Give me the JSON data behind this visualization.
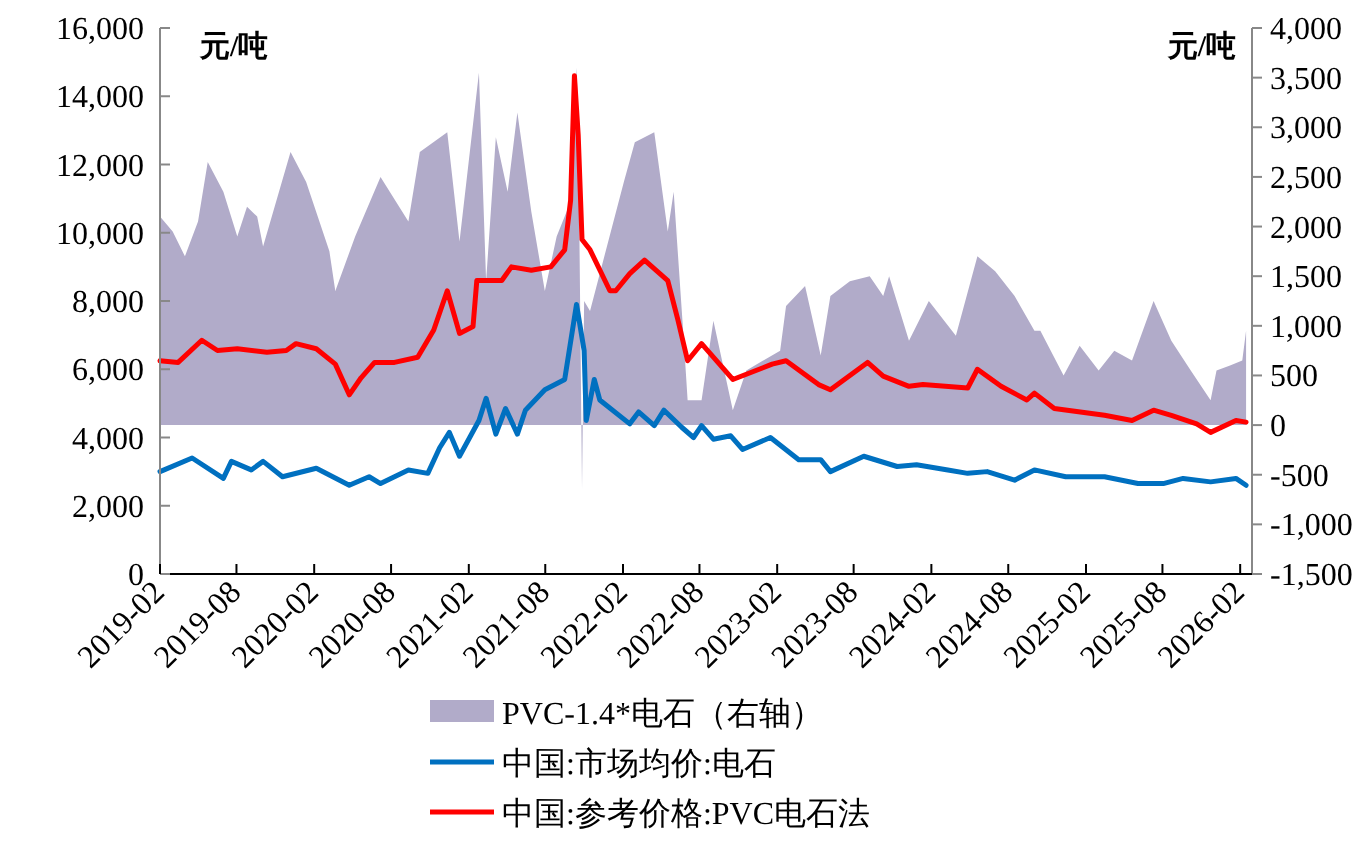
{
  "chart_data": {
    "type": "line",
    "ylabel": "元/吨",
    "y2label": "元/吨",
    "legend": "bottom",
    "grid": false,
    "xlim": [
      "2019-02-01",
      "2026-03-01"
    ],
    "xticks": [
      "2019-02",
      "2019-08",
      "2020-02",
      "2020-08",
      "2021-02",
      "2021-08",
      "2022-02",
      "2022-08",
      "2023-02",
      "2023-08",
      "2024-02",
      "2024-08",
      "2025-02",
      "2025-08",
      "2026-02"
    ],
    "ylim": [
      0,
      16000
    ],
    "yticks": [
      0,
      {
        "value": 2000,
        "label": "2,000"
      },
      {
        "value": 4000,
        "label": "4,000"
      },
      {
        "value": 6000,
        "label": "6,000"
      },
      {
        "value": 8000,
        "label": "8,000"
      },
      {
        "value": 10000,
        "label": "10,000"
      },
      {
        "value": 12000,
        "label": "12,000"
      },
      {
        "value": 14000,
        "label": "14,000"
      },
      {
        "value": 16000,
        "label": "16,000"
      }
    ],
    "y2lim": [
      -1500,
      4000
    ],
    "y2ticks": [
      {
        "value": -1500,
        "label": "-1,500"
      },
      {
        "value": -1000,
        "label": "-1,000"
      },
      -500,
      0,
      500,
      {
        "value": 1000,
        "label": "1,000"
      },
      {
        "value": 1500,
        "label": "1,500"
      },
      {
        "value": 2000,
        "label": "2,000"
      },
      {
        "value": 2500,
        "label": "2,500"
      },
      {
        "value": 3000,
        "label": "3,000"
      },
      {
        "value": 3500,
        "label": "3,500"
      },
      {
        "value": 4000,
        "label": "4,000"
      }
    ],
    "series": [
      {
        "name": "PVC-1.4*电石（右轴）",
        "type": "area",
        "axis": "y2",
        "color": "#b1abc9",
        "x": [
          "2019-02-01",
          "2019-03-03",
          "2019-04-01",
          "2019-05-02",
          "2019-05-25",
          "2019-07-01",
          "2019-08-03",
          "2019-08-26",
          "2019-09-19",
          "2019-10-03",
          "2019-12-07",
          "2020-01-13",
          "2020-03-08",
          "2020-03-22",
          "2020-05-08",
          "2020-07-07",
          "2020-09-11",
          "2020-10-08",
          "2020-12-12",
          "2021-01-10",
          "2021-02-25",
          "2021-03-14",
          "2021-04-06",
          "2021-05-04",
          "2021-05-27",
          "2021-06-29",
          "2021-07-31",
          "2021-08-28",
          "2021-09-30",
          "2021-10-14",
          "2021-10-18",
          "2021-10-27",
          "2021-11-01",
          "2021-11-15",
          "2022-02-03",
          "2022-03-01",
          "2022-04-16",
          "2022-05-18",
          "2022-06-01",
          "2022-06-25",
          "2022-07-04",
          "2022-08-06",
          "2022-09-03",
          "2022-10-19",
          "2022-11-20",
          "2023-02-08",
          "2023-02-22",
          "2023-04-08",
          "2023-05-15",
          "2023-06-07",
          "2023-07-23",
          "2023-09-08",
          "2023-10-10",
          "2023-10-24",
          "2023-12-10",
          "2024-01-26",
          "2024-03-30",
          "2024-05-20",
          "2024-07-01",
          "2024-08-16",
          "2024-10-02",
          "2024-10-16",
          "2024-12-10",
          "2025-01-17",
          "2025-03-03",
          "2025-04-09",
          "2025-05-21",
          "2025-07-11",
          "2025-08-22",
          "2025-10-07",
          "2025-11-23",
          "2025-12-07",
          "2026-01-08",
          "2026-02-06",
          "2026-02-15"
        ],
        "values": [
          2100,
          1950,
          1700,
          2050,
          2650,
          2350,
          1900,
          2200,
          2100,
          1800,
          2750,
          2450,
          1750,
          1350,
          1900,
          2500,
          2050,
          2750,
          2950,
          1850,
          3550,
          1450,
          2900,
          2350,
          3150,
          2150,
          1350,
          1900,
          2250,
          3600,
          3100,
          -650,
          1250,
          1150,
          2450,
          2850,
          2950,
          1950,
          2350,
          850,
          250,
          250,
          1050,
          150,
          550,
          750,
          1200,
          1400,
          700,
          1300,
          1450,
          1500,
          1300,
          1500,
          850,
          1250,
          900,
          1700,
          1550,
          1300,
          950,
          950,
          500,
          800,
          550,
          750,
          650,
          1250,
          850,
          550,
          250,
          550,
          600,
          650,
          950
        ]
      },
      {
        "name": "中国:市场均价:电石",
        "color": "#0070c0",
        "x": [
          "2019-02-01",
          "2019-04-18",
          "2019-07-01",
          "2019-07-20",
          "2019-09-05",
          "2019-10-03",
          "2019-11-18",
          "2020-02-06",
          "2020-04-24",
          "2020-06-10",
          "2020-07-07",
          "2020-09-11",
          "2020-10-27",
          "2020-11-24",
          "2020-12-17",
          "2021-01-10",
          "2021-02-25",
          "2021-03-14",
          "2021-04-06",
          "2021-04-29",
          "2021-05-27",
          "2021-06-15",
          "2021-07-31",
          "2021-09-16",
          "2021-10-14",
          "2021-11-01",
          "2021-11-06",
          "2021-11-25",
          "2021-12-08",
          "2022-02-17",
          "2022-03-10",
          "2022-04-16",
          "2022-05-09",
          "2022-06-20",
          "2022-07-18",
          "2022-08-06",
          "2022-09-03",
          "2022-10-14",
          "2022-11-11",
          "2023-01-16",
          "2023-03-24",
          "2023-05-15",
          "2023-06-07",
          "2023-08-25",
          "2023-11-12",
          "2023-12-28",
          "2024-03-11",
          "2024-04-27",
          "2024-06-12",
          "2024-08-16",
          "2024-10-02",
          "2024-12-15",
          "2025-03-17",
          "2025-06-04",
          "2025-08-03",
          "2025-09-19",
          "2025-11-23",
          "2026-01-22",
          "2026-02-15"
        ],
        "values": [
          3000,
          3400,
          2800,
          3300,
          3050,
          3300,
          2850,
          3100,
          2600,
          2850,
          2650,
          3050,
          2950,
          3700,
          4150,
          3450,
          4500,
          5150,
          4100,
          4850,
          4100,
          4800,
          5400,
          5700,
          7900,
          6550,
          4500,
          5700,
          5100,
          4400,
          4750,
          4350,
          4800,
          4300,
          4000,
          4350,
          3950,
          4050,
          3650,
          4000,
          3350,
          3350,
          3000,
          3450,
          3150,
          3200,
          3050,
          2950,
          3000,
          2750,
          3050,
          2850,
          2850,
          2650,
          2650,
          2800,
          2700,
          2800,
          2600
        ]
      },
      {
        "name": "中国:参考价格:PVC电石法",
        "color": "#ff0000",
        "x": [
          "2019-02-01",
          "2019-03-16",
          "2019-05-11",
          "2019-06-17",
          "2019-08-03",
          "2019-10-12",
          "2019-11-27",
          "2019-12-20",
          "2020-02-06",
          "2020-03-22",
          "2020-04-24",
          "2020-05-22",
          "2020-06-23",
          "2020-08-09",
          "2020-10-03",
          "2020-11-10",
          "2020-12-12",
          "2021-01-10",
          "2021-02-11",
          "2021-02-20",
          "2021-04-20",
          "2021-05-13",
          "2021-06-29",
          "2021-08-14",
          "2021-09-16",
          "2021-09-30",
          "2021-10-09",
          "2021-10-18",
          "2021-10-27",
          "2021-11-15",
          "2022-01-01",
          "2022-01-15",
          "2022-02-17",
          "2022-03-24",
          "2022-05-18",
          "2022-06-11",
          "2022-07-04",
          "2022-08-06",
          "2022-10-19",
          "2023-01-20",
          "2023-02-22",
          "2023-05-10",
          "2023-06-07",
          "2023-09-03",
          "2023-10-10",
          "2023-12-10",
          "2024-01-12",
          "2024-04-27",
          "2024-05-20",
          "2024-07-15",
          "2024-09-14",
          "2024-10-02",
          "2024-11-18",
          "2025-03-17",
          "2025-05-21",
          "2025-07-11",
          "2025-08-22",
          "2025-10-21",
          "2025-11-23",
          "2026-01-22",
          "2026-02-15"
        ],
        "values": [
          6250,
          6200,
          6850,
          6550,
          6600,
          6500,
          6550,
          6750,
          6600,
          6150,
          5250,
          5750,
          6200,
          6200,
          6350,
          7150,
          8300,
          7050,
          7250,
          8600,
          8600,
          9000,
          8900,
          9000,
          9500,
          10950,
          14600,
          12850,
          9800,
          9500,
          8300,
          8300,
          8800,
          9200,
          8600,
          7450,
          6250,
          6750,
          5700,
          6150,
          6250,
          5550,
          5400,
          6200,
          5800,
          5500,
          5550,
          5450,
          6000,
          5500,
          5100,
          5300,
          4850,
          4650,
          4500,
          4800,
          4650,
          4400,
          4150,
          4500,
          4450
        ]
      }
    ]
  }
}
